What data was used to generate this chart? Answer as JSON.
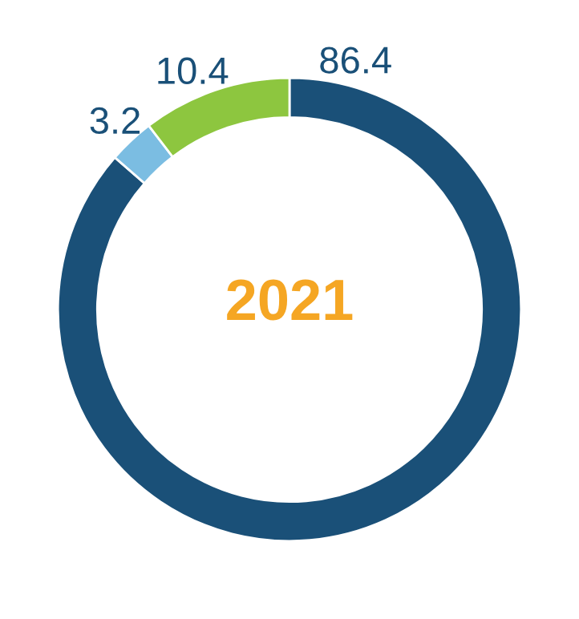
{
  "chart_data": {
    "type": "donut",
    "title": "2021",
    "categories": [
      null,
      null,
      null
    ],
    "values": [
      86.4,
      3.2,
      10.4
    ],
    "colors": [
      "#1a5078",
      "#7bbde2",
      "#8dc63f"
    ],
    "data_labels": true
  }
}
